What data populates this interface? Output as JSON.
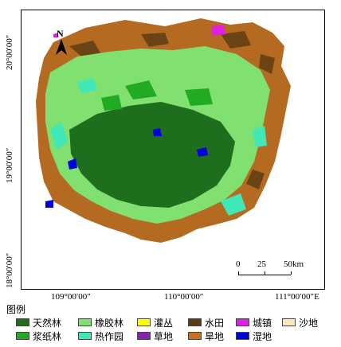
{
  "map": {
    "north_label": "N",
    "scale": {
      "labels": [
        "0",
        "25",
        "50km"
      ]
    },
    "longitude_labels": [
      "109°00′00″",
      "110°00′00″",
      "111°00′00″E"
    ],
    "latitude_labels": [
      "20°00′00″",
      "19°00′00″",
      "18°00′00″"
    ]
  },
  "legend": {
    "title": "图例",
    "items": [
      {
        "label": "天然林",
        "color": "#1e6e1e"
      },
      {
        "label": "橡胶林",
        "color": "#80e070"
      },
      {
        "label": "灌丛",
        "color": "#ffff00"
      },
      {
        "label": "水田",
        "color": "#5a3a12"
      },
      {
        "label": "城镇",
        "color": "#e020e0"
      },
      {
        "label": "沙地",
        "color": "#ffe4c0"
      },
      {
        "label": "浆纸林",
        "color": "#22aa22"
      },
      {
        "label": "热作园",
        "color": "#40e8b8"
      },
      {
        "label": "草地",
        "color": "#8a20b0"
      },
      {
        "label": "旱地",
        "color": "#c87020"
      },
      {
        "label": "湿地",
        "color": "#0000e0"
      }
    ]
  }
}
